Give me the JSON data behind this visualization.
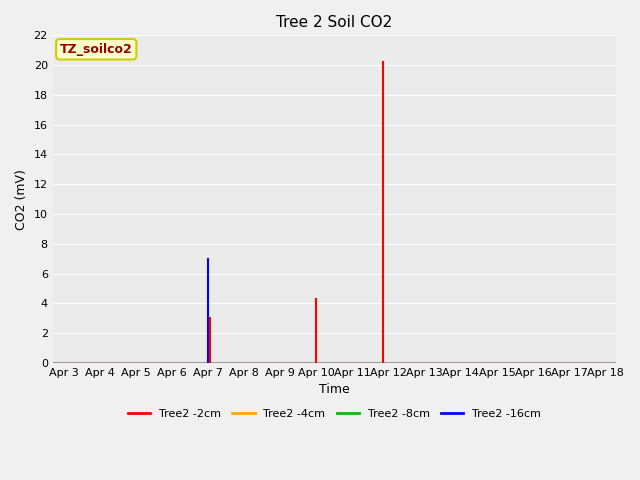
{
  "title": "Tree 2 Soil CO2",
  "ylabel": "CO2 (mV)",
  "xlabel": "Time",
  "ylim": [
    0,
    22
  ],
  "figure_facecolor": "#f0f0f0",
  "plot_bg_color": "#ebebeb",
  "annotation_label": "TZ_soilco2",
  "annotation_text_color": "#990000",
  "annotation_bg_color": "#ffffcc",
  "annotation_border_color": "#cccc00",
  "x_start_day": 3,
  "x_end_day": 18,
  "series": [
    {
      "label": "Tree2 -2cm",
      "color": "#ff0000",
      "baseline": true,
      "data": [
        {
          "day": 7.05,
          "value": 3.0
        },
        {
          "day": 10.0,
          "value": 4.3
        },
        {
          "day": 11.85,
          "value": 20.2
        }
      ]
    },
    {
      "label": "Tree2 -4cm",
      "color": "#ffaa00",
      "baseline": true,
      "data": []
    },
    {
      "label": "Tree2 -8cm",
      "color": "#00bb00",
      "baseline": true,
      "data": []
    },
    {
      "label": "Tree2 -16cm",
      "color": "#0000ff",
      "baseline": true,
      "data": [
        {
          "day": 7.0,
          "value": 7.0
        }
      ]
    }
  ],
  "xtick_days": [
    3,
    4,
    5,
    6,
    7,
    8,
    9,
    10,
    11,
    12,
    13,
    14,
    15,
    16,
    17,
    18
  ],
  "ytick_values": [
    0,
    2,
    4,
    6,
    8,
    10,
    12,
    14,
    16,
    18,
    20,
    22
  ],
  "grid_color": "#ffffff",
  "title_fontsize": 11,
  "axis_label_fontsize": 9,
  "tick_fontsize": 8,
  "legend_fontsize": 8,
  "spike_linewidth": 1.5,
  "baseline_linewidth": 1.0
}
